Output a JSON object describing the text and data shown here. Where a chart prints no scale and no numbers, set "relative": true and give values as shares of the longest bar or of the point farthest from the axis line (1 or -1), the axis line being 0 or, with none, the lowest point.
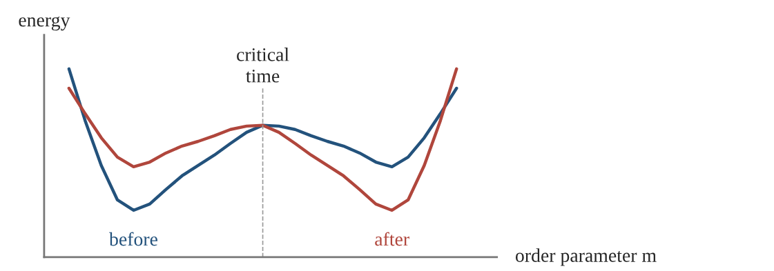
{
  "chart_data": {
    "type": "line",
    "relative": true,
    "xlabel": "order parameter m",
    "ylabel": "energy",
    "categories": [
      null,
      null,
      null,
      null,
      null,
      null,
      null,
      null,
      null,
      null,
      null,
      null,
      null,
      null,
      null,
      null,
      null,
      null,
      null,
      null,
      null,
      null,
      null,
      null,
      null
    ],
    "series": [
      {
        "name": "before",
        "color": "#23527c",
        "values": [
          1,
          0.725,
          0.487,
          0.304,
          0.249,
          0.282,
          0.359,
          0.432,
          0.487,
          0.542,
          0.604,
          0.663,
          0.7,
          0.696,
          0.678,
          0.645,
          0.615,
          0.59,
          0.553,
          0.505,
          0.48,
          0.531,
          0.634,
          0.762,
          0.897
        ]
      },
      {
        "name": "after",
        "color": "#b0463c",
        "values": [
          0.897,
          0.762,
          0.634,
          0.531,
          0.48,
          0.505,
          0.553,
          0.59,
          0.615,
          0.645,
          0.678,
          0.696,
          0.7,
          0.663,
          0.604,
          0.542,
          0.487,
          0.432,
          0.359,
          0.282,
          0.249,
          0.304,
          0.487,
          0.725,
          1
        ]
      }
    ],
    "annotations": [
      "critical time"
    ]
  }
}
